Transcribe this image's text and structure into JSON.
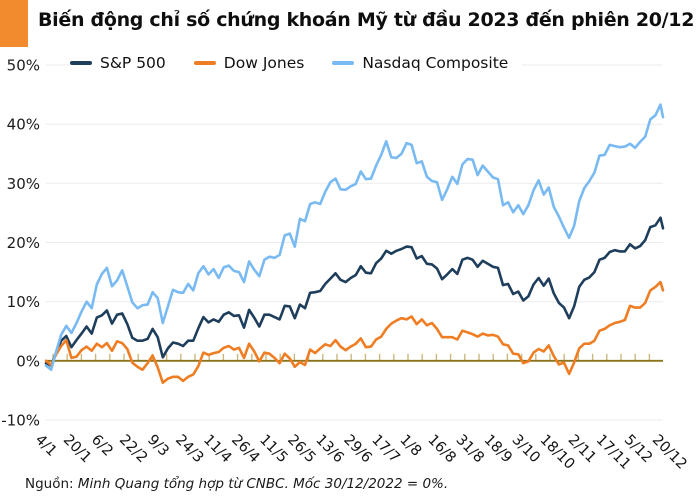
{
  "header": {
    "accent_color": "#F28A2E"
  },
  "footer": {
    "source_label": "Nguồn:",
    "source_text": "Minh Quang tổng hợp từ CNBC. Mốc 30/12/2022 = 0%."
  },
  "colors": {
    "accent": "#F28A2E",
    "sp500": "#1E3E5C",
    "dow": "#EE7D23",
    "nasdaq": "#79BAF2",
    "grid": "#EBEBEB",
    "zero_axis": "#8C741C",
    "zero_tick": "#C9B87E",
    "text": "#111111"
  },
  "chart_data": {
    "type": "line",
    "title": "Biến động chỉ số chứng khoán Mỹ từ đầu 2023 đến phiên 20/12",
    "xlabel": "",
    "ylabel": "",
    "ylim": [
      -10,
      50
    ],
    "grid": "horizontal",
    "legend_position": "top",
    "y_ticks": [
      50,
      40,
      30,
      20,
      10,
      0,
      -10
    ],
    "y_tick_labels": [
      "50%",
      "40%",
      "30%",
      "20%",
      "10%",
      "0%",
      "-10%"
    ],
    "x_tick_labels": [
      "4/1",
      "20/1",
      "6/2",
      "22/2",
      "9/3",
      "24/3",
      "11/4",
      "26/4",
      "11/5",
      "26/5",
      "13/6",
      "29/6",
      "17/7",
      "1/8",
      "16/8",
      "31/8",
      "18/9",
      "3/10",
      "18/10",
      "2/11",
      "17/11",
      "5/12",
      "20/12"
    ],
    "x_description": "Phiên giao dịch từ 3/1/2023 (ngày 0) đến 20/12/2023 (ngày 243); giá trị lấy mẫu mỗi 2 phiên, điểm cuối là 20/12. Đơn vị: % thay đổi so với mốc 30/12/2022 = 0%.",
    "series": [
      {
        "name": "S&P 500",
        "color_key": "sp500",
        "values": [
          -0.4,
          -0.8,
          1.4,
          3.4,
          4.2,
          2.3,
          3.5,
          4.6,
          5.8,
          4.6,
          7.3,
          7.7,
          8.5,
          6.3,
          7.8,
          8.0,
          6.2,
          3.9,
          3.4,
          3.4,
          3.7,
          5.4,
          4.0,
          0.6,
          2.1,
          3.1,
          2.9,
          2.5,
          3.4,
          3.4,
          5.5,
          7.4,
          6.5,
          7.0,
          6.6,
          7.8,
          8.2,
          7.6,
          7.7,
          5.6,
          8.6,
          7.3,
          5.8,
          7.8,
          7.8,
          7.4,
          7.0,
          9.3,
          9.2,
          7.2,
          9.5,
          8.9,
          11.5,
          11.6,
          11.8,
          13.0,
          13.9,
          14.8,
          13.7,
          13.3,
          14.0,
          14.5,
          16.0,
          14.9,
          14.8,
          16.5,
          17.3,
          18.6,
          18.1,
          18.6,
          18.9,
          19.3,
          19.2,
          17.3,
          17.7,
          16.4,
          16.3,
          15.6,
          13.8,
          14.6,
          15.5,
          14.7,
          17.1,
          17.4,
          17.1,
          15.9,
          16.9,
          16.4,
          15.9,
          15.7,
          12.8,
          13.0,
          11.3,
          11.7,
          10.2,
          10.9,
          12.9,
          14.0,
          12.7,
          13.9,
          11.4,
          9.8,
          9.0,
          7.2,
          9.2,
          12.5,
          13.7,
          14.1,
          15.0,
          17.1,
          17.4,
          18.4,
          18.7,
          18.5,
          18.5,
          19.7,
          19.0,
          19.4,
          20.4,
          22.6,
          22.9,
          24.2,
          22.4
        ]
      },
      {
        "name": "Dow Jones",
        "color_key": "dow",
        "values": [
          0.0,
          -0.7,
          1.1,
          2.5,
          3.5,
          0.5,
          0.7,
          1.8,
          2.4,
          1.7,
          2.9,
          2.3,
          3.0,
          1.7,
          3.3,
          3.0,
          2.0,
          -0.3,
          -1.0,
          -1.5,
          -0.4,
          0.9,
          -1.1,
          -3.7,
          -3.0,
          -2.7,
          -2.7,
          -3.4,
          -2.7,
          -2.3,
          -0.9,
          1.4,
          1.0,
          1.3,
          1.5,
          2.2,
          2.5,
          1.9,
          2.2,
          0.5,
          2.9,
          1.6,
          -0.1,
          1.4,
          1.2,
          0.5,
          -0.4,
          1.2,
          0.4,
          -1.0,
          -0.2,
          -0.7,
          1.9,
          1.3,
          2.1,
          2.8,
          2.5,
          3.5,
          2.4,
          1.8,
          2.4,
          2.9,
          3.8,
          2.3,
          2.4,
          3.6,
          4.1,
          5.4,
          6.3,
          6.8,
          7.2,
          7.0,
          7.5,
          6.2,
          7.0,
          6.0,
          6.4,
          5.4,
          4.0,
          4.0,
          4.0,
          3.6,
          5.1,
          4.8,
          4.5,
          4.1,
          4.6,
          4.3,
          4.4,
          4.1,
          2.8,
          2.6,
          1.2,
          1.1,
          -0.4,
          -0.1,
          1.4,
          2.0,
          1.6,
          2.6,
          0.8,
          -0.6,
          -0.3,
          -2.2,
          -0.3,
          2.1,
          2.9,
          2.9,
          3.4,
          5.1,
          5.4,
          6.0,
          6.4,
          6.6,
          6.9,
          9.3,
          9.0,
          9.0,
          9.8,
          11.9,
          12.5,
          13.3,
          11.9
        ]
      },
      {
        "name": "Nasdaq Composite",
        "color_key": "nasdaq",
        "values": [
          -0.8,
          -1.5,
          1.6,
          4.4,
          5.9,
          4.7,
          6.4,
          8.3,
          10.0,
          8.9,
          12.9,
          14.7,
          15.7,
          12.6,
          13.6,
          15.3,
          12.6,
          9.9,
          8.9,
          9.4,
          9.5,
          11.6,
          10.6,
          6.4,
          9.2,
          12.0,
          11.6,
          11.5,
          13.0,
          11.9,
          14.8,
          16.0,
          14.6,
          15.5,
          14.0,
          15.8,
          16.1,
          15.2,
          15.0,
          13.3,
          16.8,
          15.4,
          14.3,
          17.1,
          17.6,
          17.4,
          17.9,
          21.2,
          21.5,
          19.3,
          24.0,
          23.6,
          26.5,
          26.8,
          26.5,
          28.6,
          30.2,
          30.8,
          29.0,
          28.9,
          29.5,
          29.9,
          32.0,
          30.7,
          30.8,
          33.0,
          34.8,
          37.1,
          34.4,
          34.3,
          35.0,
          36.8,
          36.5,
          33.4,
          33.7,
          31.1,
          30.4,
          30.2,
          27.2,
          29.0,
          31.1,
          29.9,
          33.2,
          34.1,
          34.0,
          31.4,
          33.0,
          32.0,
          31.0,
          30.7,
          26.3,
          26.8,
          25.1,
          26.3,
          24.8,
          26.3,
          28.8,
          30.5,
          28.1,
          29.3,
          26.0,
          24.4,
          22.5,
          20.8,
          22.8,
          27.0,
          29.2,
          30.4,
          31.8,
          34.7,
          34.8,
          36.5,
          36.3,
          36.1,
          36.2,
          36.7,
          36.0,
          37.0,
          37.9,
          40.8,
          41.5,
          43.3,
          41.2
        ]
      }
    ]
  }
}
